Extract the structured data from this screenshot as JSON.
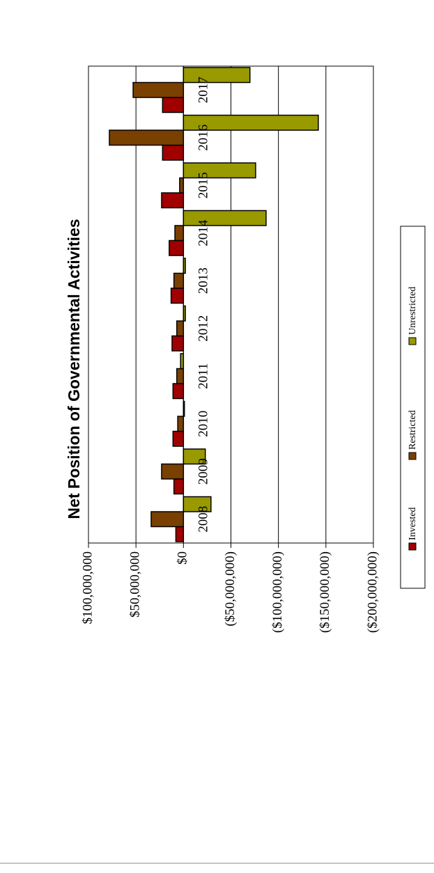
{
  "chart_data": {
    "type": "bar",
    "title": "Net Position of Governmental Activities",
    "categories": [
      "2008",
      "2009",
      "2010",
      "2011",
      "2012",
      "2013",
      "2014",
      "2015",
      "2016",
      "2017"
    ],
    "series": [
      {
        "name": "Invested",
        "color": "#a00000",
        "values": [
          8000000,
          10000000,
          11000000,
          11000000,
          12000000,
          13000000,
          15000000,
          23000000,
          22000000,
          22000000
        ]
      },
      {
        "name": "Restricted",
        "color": "#7a4000",
        "values": [
          34000000,
          23000000,
          6000000,
          7000000,
          7000000,
          10000000,
          9000000,
          4000000,
          78000000,
          53000000
        ]
      },
      {
        "name": "Unrestricted",
        "color": "#999900",
        "values": [
          -29000000,
          -23000000,
          -1000000,
          3000000,
          -2000000,
          -2000000,
          -87000000,
          -76000000,
          -142000000,
          -70000000
        ]
      }
    ],
    "ylim": [
      -200000000,
      100000000
    ],
    "yticks": [
      {
        "value": 100000000,
        "label": "$100,000,000"
      },
      {
        "value": 50000000,
        "label": "$50,000,000"
      },
      {
        "value": 0,
        "label": "$0"
      },
      {
        "value": -50000000,
        "label": "($50,000,000)"
      },
      {
        "value": -100000000,
        "label": "($100,000,000)"
      },
      {
        "value": -150000000,
        "label": "($150,000,000)"
      },
      {
        "value": -200000000,
        "label": "($200,000,000)"
      }
    ],
    "grid": true,
    "legend": "bottom"
  }
}
